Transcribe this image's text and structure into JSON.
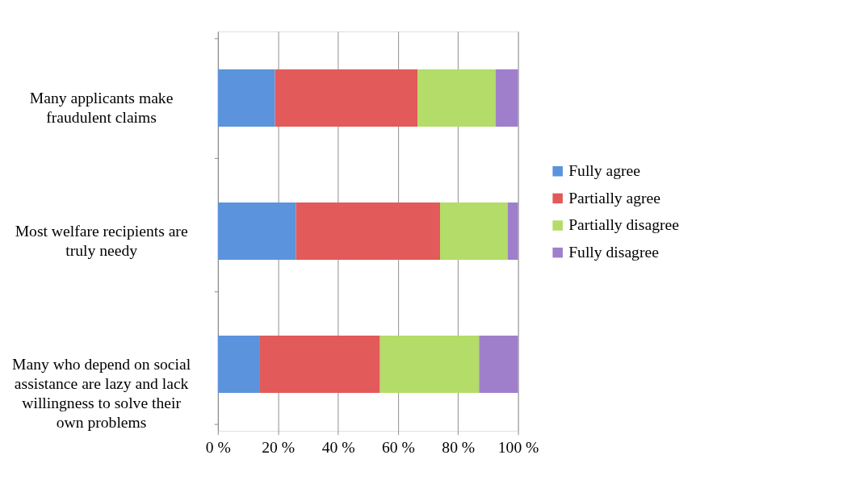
{
  "chart_data": {
    "type": "bar",
    "orientation": "horizontal",
    "stacked": true,
    "categories": [
      "Many applicants make fraudulent claims",
      "Most welfare recipients are truly needy",
      "Many who depend on social assistance are lazy and lack willingness to solve their own problems"
    ],
    "series": [
      {
        "name": "Fully agree",
        "color": "#5b93dc",
        "values": [
          19,
          26,
          14
        ]
      },
      {
        "name": "Partially agree",
        "color": "#e25a5a",
        "values": [
          47.5,
          48,
          40
        ]
      },
      {
        "name": "Partially disagree",
        "color": "#b3dc68",
        "values": [
          26,
          22.5,
          33
        ]
      },
      {
        "name": "Fully disagree",
        "color": "#9f7fcc",
        "values": [
          7.5,
          3.5,
          13
        ]
      }
    ],
    "xlim": [
      0,
      100
    ],
    "xticks": [
      {
        "value": 0,
        "label": "0 %"
      },
      {
        "value": 20,
        "label": "20 %"
      },
      {
        "value": 40,
        "label": "40 %"
      },
      {
        "value": 60,
        "label": "60 %"
      },
      {
        "value": 80,
        "label": "80 %"
      },
      {
        "value": 100,
        "label": "100 %"
      }
    ],
    "grid": "x",
    "legend": "right"
  }
}
